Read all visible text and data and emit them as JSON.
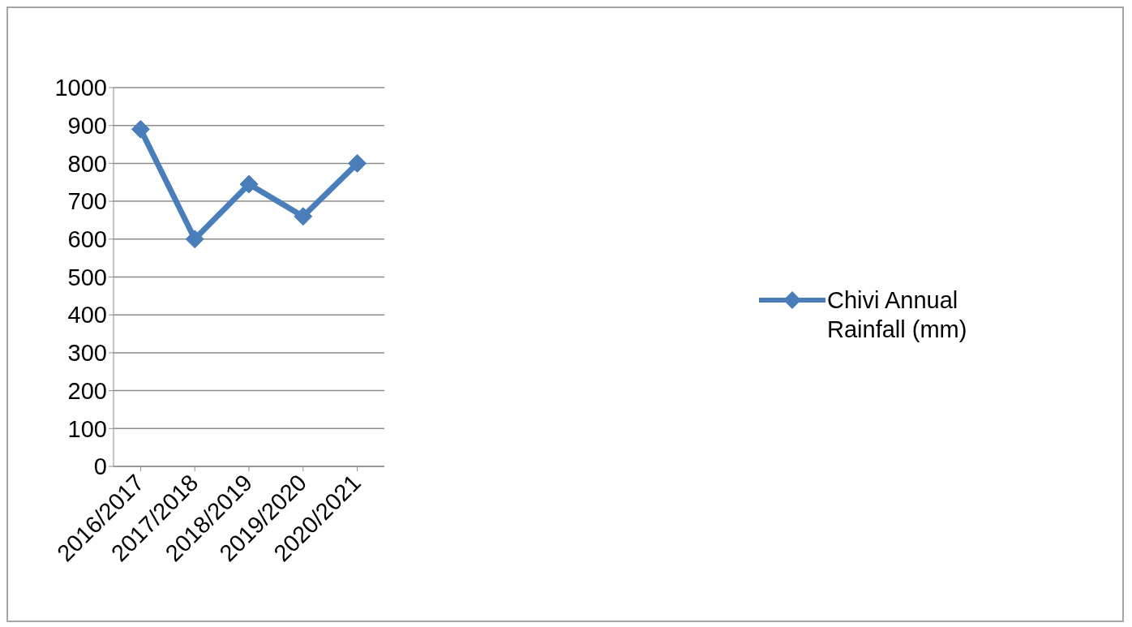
{
  "chart_data": {
    "type": "line",
    "categories": [
      "2016/2017",
      "2017/2018",
      "2018/2019",
      "2019/2020",
      "2020/2021"
    ],
    "series": [
      {
        "name": "Chivi Annual Rainfall (mm)",
        "color": "#4a7ebb",
        "values": [
          890,
          600,
          745,
          660,
          800
        ]
      }
    ],
    "ylim": [
      0,
      1000
    ],
    "yticks": [
      0,
      100,
      200,
      300,
      400,
      500,
      600,
      700,
      800,
      900,
      1000
    ],
    "grid": "y",
    "legend": "right",
    "marker": "diamond"
  }
}
